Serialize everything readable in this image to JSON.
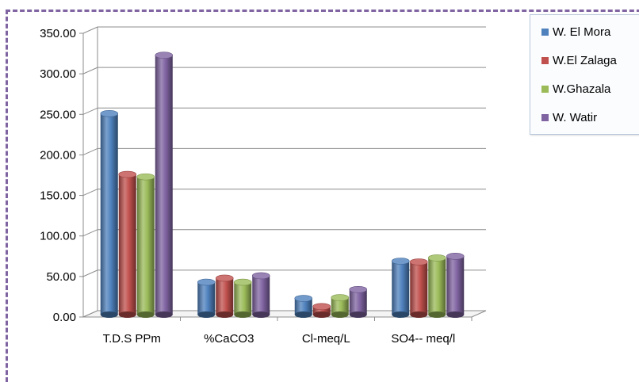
{
  "chart_data": {
    "type": "bar",
    "categories": [
      "T.D.S PPm",
      "%CaCO3",
      "Cl-meq/L",
      "SO4-- meq/l"
    ],
    "series": [
      {
        "name": "W. El Mora",
        "color": "#4f81bd",
        "values": [
          248,
          40,
          20,
          66
        ]
      },
      {
        "name": "W.El Zalaga",
        "color": "#c0504d",
        "values": [
          173,
          45,
          10,
          65
        ]
      },
      {
        "name": "W.Ghazala",
        "color": "#9bbb59",
        "values": [
          170,
          40,
          21,
          70
        ]
      },
      {
        "name": "W. Watir",
        "color": "#8064a2",
        "values": [
          320,
          48,
          31,
          72
        ]
      }
    ],
    "y_ticks": [
      "0.00",
      "50.00",
      "100.00",
      "150.00",
      "200.00",
      "250.00",
      "300.00",
      "350.00"
    ],
    "ylim": [
      0,
      350
    ],
    "grid": true,
    "legend_position": "top-right",
    "style": "3d-cylinder"
  }
}
